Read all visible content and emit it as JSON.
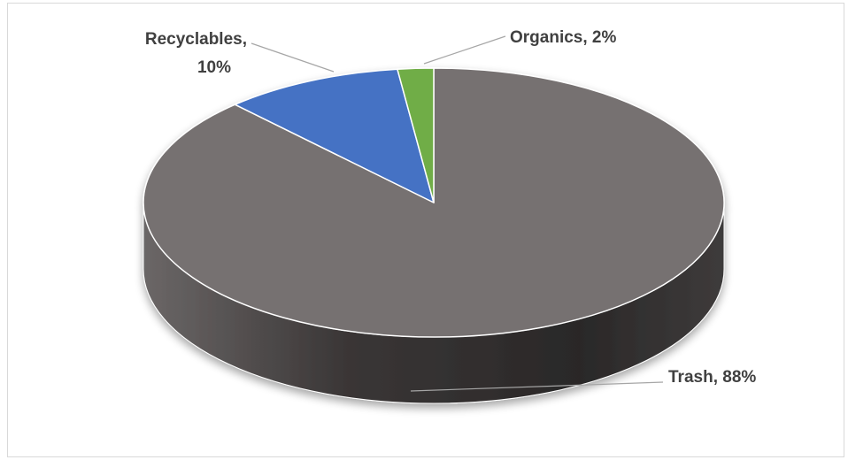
{
  "chart_data": {
    "type": "pie",
    "style": "3d",
    "title": "",
    "legend": "none",
    "slices": [
      {
        "category": "Trash",
        "value": 88,
        "label": "Trash, 88%",
        "color": "#767171"
      },
      {
        "category": "Recyclables",
        "value": 10,
        "label_line1": "Recyclables,",
        "label_line2": "10%",
        "color": "#4472c4"
      },
      {
        "category": "Organics",
        "value": 2,
        "label": "Organics, 2%",
        "color": "#70ad47"
      }
    ]
  }
}
